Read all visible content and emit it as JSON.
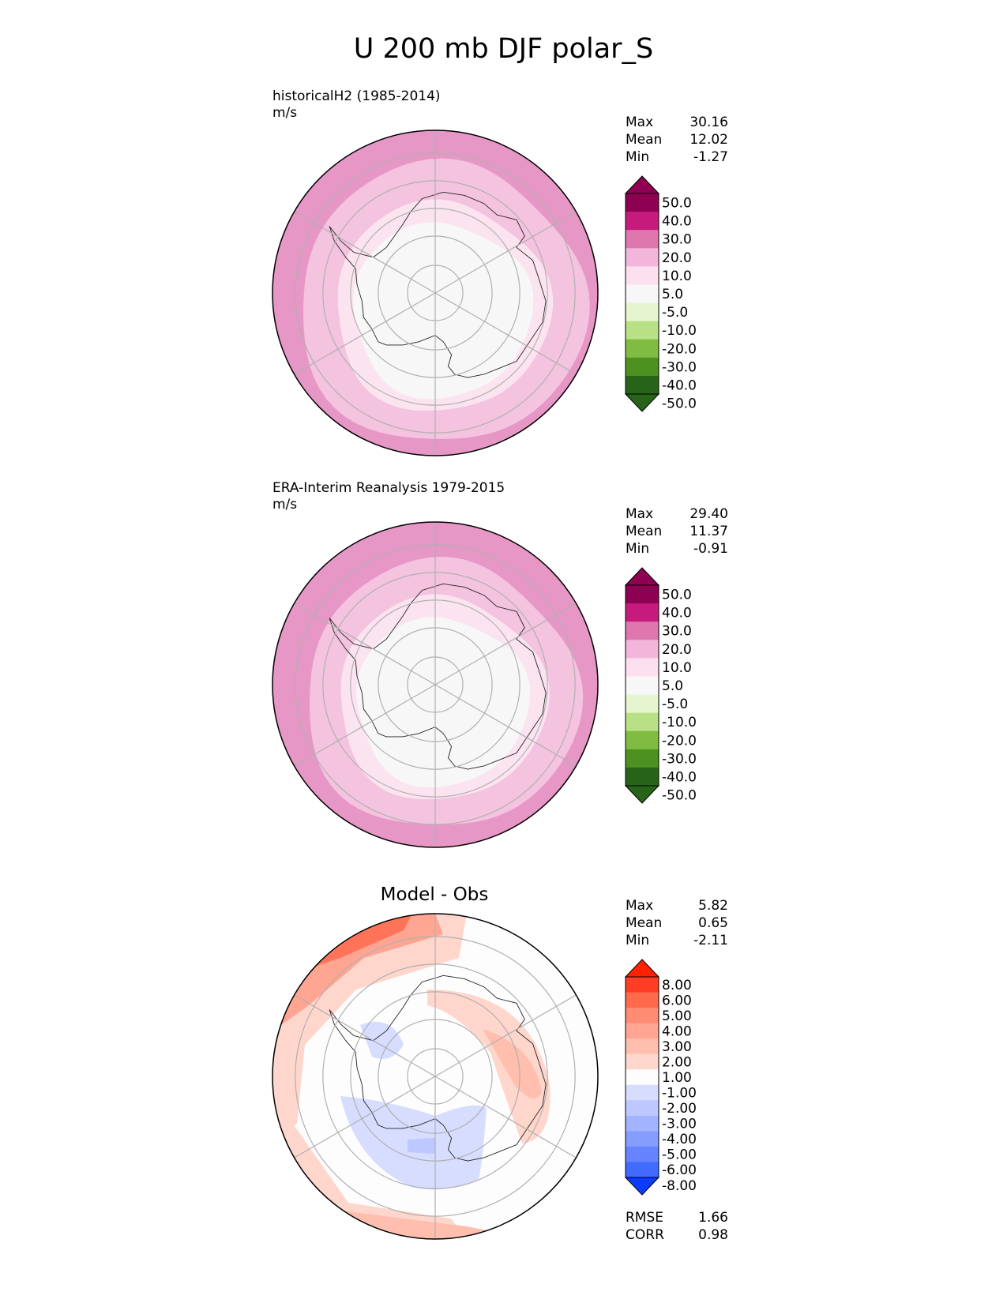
{
  "title": "U 200 mb DJF polar_S",
  "panels": [
    {
      "header_line1": "historicalH2 (1985-2014)",
      "header_line2": "m/s",
      "stats": [
        {
          "label": "Max",
          "value": "30.16"
        },
        {
          "label": "Mean",
          "value": "12.02"
        },
        {
          "label": "Min",
          "value": "-1.27"
        }
      ]
    },
    {
      "header_line1": "ERA-Interim Reanalysis 1979-2015",
      "header_line2": "m/s",
      "stats": [
        {
          "label": "Max",
          "value": "29.40"
        },
        {
          "label": "Mean",
          "value": "11.37"
        },
        {
          "label": "Min",
          "value": "-0.91"
        }
      ]
    },
    {
      "title": "Model - Obs",
      "stats": [
        {
          "label": "Max",
          "value": "5.82"
        },
        {
          "label": "Mean",
          "value": "0.65"
        },
        {
          "label": "Min",
          "value": "-2.11"
        }
      ],
      "metrics": [
        {
          "label": "RMSE",
          "value": "1.66"
        },
        {
          "label": "CORR",
          "value": "0.98"
        }
      ]
    }
  ],
  "chart_data": [
    {
      "type": "heatmap",
      "projection": "south polar stereographic",
      "levels": [
        "50.0",
        "40.0",
        "30.0",
        "20.0",
        "10.0",
        "5.0",
        "-5.0",
        "-10.0",
        "-20.0",
        "-30.0",
        "-40.0",
        "-50.0"
      ],
      "colors": [
        "#8e0152",
        "#c51b7d",
        "#de77ae",
        "#f1b6da",
        "#fde0ef",
        "#f7f7f7",
        "#e6f5d0",
        "#b8e186",
        "#7fbc41",
        "#4d9221",
        "#276419"
      ],
      "extend_top_color": "#8e0152",
      "extend_bottom_color": "#276419"
    },
    {
      "type": "heatmap",
      "projection": "south polar stereographic",
      "levels": [
        "50.0",
        "40.0",
        "30.0",
        "20.0",
        "10.0",
        "5.0",
        "-5.0",
        "-10.0",
        "-20.0",
        "-30.0",
        "-40.0",
        "-50.0"
      ],
      "colors": [
        "#8e0152",
        "#c51b7d",
        "#de77ae",
        "#f1b6da",
        "#fde0ef",
        "#f7f7f7",
        "#e6f5d0",
        "#b8e186",
        "#7fbc41",
        "#4d9221",
        "#276419"
      ],
      "extend_top_color": "#8e0152",
      "extend_bottom_color": "#276419"
    },
    {
      "type": "heatmap",
      "projection": "south polar stereographic",
      "levels": [
        "8.00",
        "6.00",
        "5.00",
        "4.00",
        "3.00",
        "2.00",
        "1.00",
        "-1.00",
        "-2.00",
        "-3.00",
        "-4.00",
        "-5.00",
        "-6.00",
        "-8.00"
      ],
      "colors": [
        "#ff3d24",
        "#ff6a4d",
        "#ff8b72",
        "#ffa592",
        "#ffbeae",
        "#ffd6cc",
        "#fdfdfd",
        "#d6ddff",
        "#bcc8ff",
        "#a2b4ff",
        "#859dff",
        "#6684ff",
        "#416aff"
      ],
      "extend_top_color": "#ff2200",
      "extend_bottom_color": "#0a3cff"
    }
  ]
}
